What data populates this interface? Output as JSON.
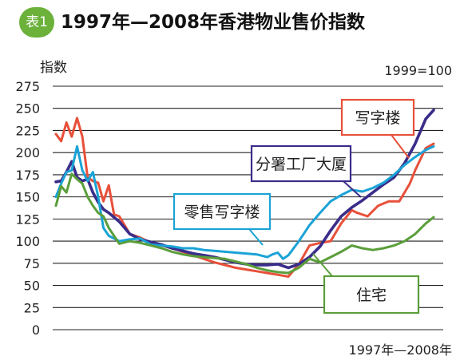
{
  "header": {
    "badge": "表1",
    "title": "1997年—2008年香港物业售价指数"
  },
  "chart_data": {
    "type": "line",
    "title": "1997年—2008年香港物业售价指数",
    "ylabel": "指数",
    "xlabel": "1997年—2008年",
    "base_note": "1999=100",
    "ylim": [
      0,
      275
    ],
    "yticks": [
      0,
      25,
      50,
      75,
      100,
      125,
      150,
      175,
      200,
      225,
      250,
      275
    ],
    "grid": true,
    "x_units": "months since 1997-01 (1997-01 = 0, 2008-12 = 143)",
    "series": [
      {
        "name": "写字楼",
        "color": "#e8503a",
        "x": [
          0,
          2,
          4,
          6,
          8,
          10,
          12,
          14,
          16,
          18,
          20,
          22,
          24,
          28,
          32,
          36,
          40,
          44,
          48,
          52,
          56,
          60,
          64,
          68,
          72,
          76,
          80,
          84,
          88,
          92,
          96,
          100,
          104,
          108,
          112,
          114,
          118,
          122,
          126,
          130,
          134,
          136,
          140,
          143
        ],
        "values": [
          221,
          213,
          234,
          218,
          239,
          218,
          172,
          168,
          166,
          145,
          163,
          130,
          128,
          108,
          104,
          98,
          95,
          92,
          88,
          84,
          80,
          76,
          73,
          70,
          68,
          66,
          64,
          62,
          60,
          74,
          95,
          98,
          100,
          120,
          135,
          132,
          128,
          140,
          145,
          145,
          165,
          180,
          205,
          210
        ]
      },
      {
        "name": "分署工厂大厦",
        "color": "#3a2d8a",
        "x": [
          0,
          2,
          4,
          6,
          8,
          10,
          12,
          14,
          16,
          18,
          20,
          24,
          28,
          32,
          36,
          40,
          44,
          48,
          52,
          56,
          60,
          64,
          68,
          72,
          76,
          80,
          84,
          88,
          92,
          96,
          100,
          104,
          108,
          112,
          116,
          120,
          124,
          128,
          132,
          136,
          140,
          143
        ],
        "values": [
          167,
          168,
          178,
          190,
          172,
          168,
          170,
          155,
          144,
          136,
          132,
          122,
          108,
          102,
          99,
          96,
          92,
          89,
          86,
          84,
          82,
          79,
          76,
          74,
          73,
          73,
          74,
          70,
          74,
          82,
          94,
          112,
          128,
          138,
          146,
          155,
          164,
          172,
          188,
          210,
          238,
          248
        ]
      },
      {
        "name": "零售写字楼",
        "color": "#1aa3d6",
        "x": [
          0,
          2,
          4,
          6,
          8,
          10,
          12,
          14,
          16,
          18,
          20,
          24,
          28,
          32,
          36,
          40,
          44,
          48,
          52,
          56,
          60,
          64,
          68,
          72,
          76,
          80,
          82,
          84,
          86,
          88,
          92,
          96,
          100,
          104,
          108,
          112,
          116,
          120,
          124,
          128,
          132,
          136,
          140,
          143
        ],
        "values": [
          150,
          165,
          178,
          180,
          207,
          180,
          168,
          178,
          150,
          115,
          106,
          100,
          102,
          103,
          96,
          95,
          94,
          92,
          92,
          90,
          89,
          88,
          87,
          86,
          85,
          82,
          85,
          87,
          80,
          84,
          100,
          118,
          132,
          145,
          152,
          158,
          156,
          160,
          166,
          175,
          186,
          195,
          203,
          207
        ]
      },
      {
        "name": "住宅",
        "color": "#5a9e3a",
        "x": [
          0,
          2,
          4,
          6,
          8,
          10,
          12,
          14,
          16,
          18,
          20,
          24,
          28,
          32,
          36,
          40,
          44,
          48,
          52,
          56,
          60,
          64,
          68,
          72,
          76,
          80,
          84,
          88,
          92,
          96,
          100,
          104,
          108,
          112,
          116,
          120,
          124,
          128,
          132,
          136,
          140,
          143
        ],
        "values": [
          140,
          162,
          155,
          176,
          170,
          165,
          150,
          140,
          132,
          128,
          115,
          97,
          100,
          98,
          95,
          92,
          88,
          85,
          83,
          82,
          81,
          80,
          77,
          74,
          70,
          67,
          65,
          64,
          70,
          80,
          76,
          82,
          88,
          95,
          92,
          90,
          92,
          95,
          100,
          108,
          120,
          127
        ]
      }
    ],
    "annotations": [
      {
        "text": "写字楼",
        "series": "写字楼"
      },
      {
        "text": "分署工厂大厦",
        "series": "分署工厂大厦"
      },
      {
        "text": "零售写字楼",
        "series": "零售写字楼"
      },
      {
        "text": "住宅",
        "series": "住宅"
      }
    ]
  }
}
